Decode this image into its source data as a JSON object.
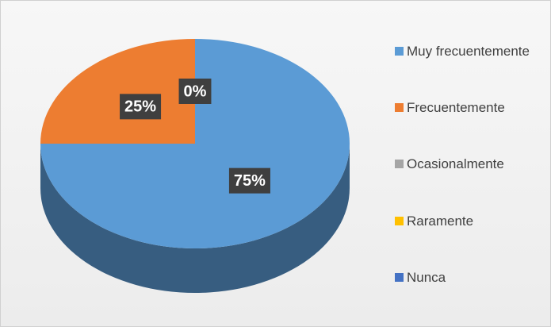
{
  "chart_data": {
    "type": "pie",
    "categories": [
      "Muy frecuentemente",
      "Frecuentemente",
      "Ocasionalmente",
      "Raramente",
      "Nunca"
    ],
    "values": [
      75,
      25,
      0,
      0,
      0
    ],
    "value_labels": [
      "75%",
      "25%",
      "0%",
      null,
      null
    ],
    "colors": [
      "#5b9bd5",
      "#ed7d31",
      "#a5a5a5",
      "#ffc000",
      "#4472c4"
    ],
    "legend": "right"
  }
}
